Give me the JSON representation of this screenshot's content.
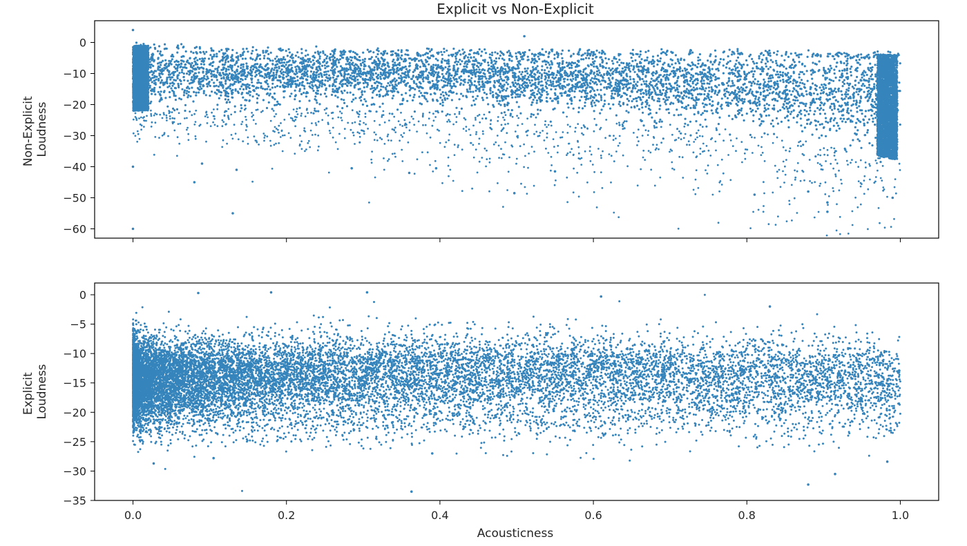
{
  "figure": {
    "title": "Explicit vs Non-Explicit",
    "xlabel": "Acousticness"
  },
  "colors": {
    "marker": "#1f77b4",
    "axes": "#000000",
    "text": "#262626",
    "background": "#ffffff"
  },
  "chart_data": [
    {
      "type": "scatter",
      "title": "Explicit vs Non-Explicit",
      "xlabel": "",
      "ylabel": "Non-Explicit\nLoudness",
      "ylabel_lines": [
        "Non-Explicit",
        "Loudness"
      ],
      "xlim": [
        -0.05,
        1.05
      ],
      "ylim": [
        -63,
        7
      ],
      "xticks": [
        0.0,
        0.2,
        0.4,
        0.6,
        0.8,
        1.0
      ],
      "xtick_labels_visible": false,
      "yticks": [
        0,
        -10,
        -20,
        -30,
        -40,
        -50,
        -60
      ],
      "ytick_labels": [
        "0",
        "−10",
        "−20",
        "−30",
        "−40",
        "−50",
        "−60"
      ],
      "grid": false,
      "series": [
        {
          "marker": "dot",
          "density": "very dense (tens of thousands of points)",
          "trend": [
            {
              "x": 0.0,
              "y_center": -10,
              "y_band": [
                -22,
                -1
              ]
            },
            {
              "x": 0.2,
              "y_center": -10,
              "y_band": [
                -21,
                -2
              ]
            },
            {
              "x": 0.4,
              "y_center": -11,
              "y_band": [
                -22,
                -3
              ]
            },
            {
              "x": 0.6,
              "y_center": -12,
              "y_band": [
                -24,
                -3
              ]
            },
            {
              "x": 0.8,
              "y_center": -14,
              "y_band": [
                -28,
                -3
              ]
            },
            {
              "x": 1.0,
              "y_center": -17,
              "y_band": [
                -38,
                -4
              ]
            }
          ],
          "outliers": [
            {
              "x": 0.0,
              "y": -60
            },
            {
              "x": 0.0,
              "y": 4
            },
            {
              "x": 0.13,
              "y": -55
            },
            {
              "x": 0.08,
              "y": -45
            },
            {
              "x": 0.0,
              "y": -40
            },
            {
              "x": 0.497,
              "y": -48.5
            },
            {
              "x": 0.905,
              "y": -54.5
            },
            {
              "x": 0.905,
              "y": -51.5
            },
            {
              "x": 0.99,
              "y": -50
            },
            {
              "x": 0.81,
              "y": -49
            },
            {
              "x": 0.88,
              "y": -48
            },
            {
              "x": 0.55,
              "y": -41.5
            },
            {
              "x": 0.36,
              "y": -42
            },
            {
              "x": 0.285,
              "y": -40.5
            },
            {
              "x": 0.395,
              "y": -40.5
            },
            {
              "x": 0.135,
              "y": -41
            },
            {
              "x": 0.51,
              "y": 2
            },
            {
              "x": 0.09,
              "y": -39
            }
          ]
        }
      ]
    },
    {
      "type": "scatter",
      "title": "",
      "xlabel": "Acousticness",
      "ylabel": "Explicit\nLoudness",
      "ylabel_lines": [
        "Explicit",
        "Loudness"
      ],
      "xlim": [
        -0.05,
        1.05
      ],
      "ylim": [
        -35,
        2
      ],
      "xticks": [
        0.0,
        0.2,
        0.4,
        0.6,
        0.8,
        1.0
      ],
      "xtick_labels": [
        "0.0",
        "0.2",
        "0.4",
        "0.6",
        "0.8",
        "1.0"
      ],
      "yticks": [
        0,
        -5,
        -10,
        -15,
        -20,
        -25,
        -30,
        -35
      ],
      "ytick_labels": [
        "0",
        "−5",
        "−10",
        "−15",
        "−20",
        "−25",
        "−30",
        "−35"
      ],
      "grid": false,
      "series": [
        {
          "marker": "dot",
          "density": "dense near x=0, sparse toward x=1",
          "clusters": [
            {
              "name_hidden": true,
              "x_range": [
                0.0,
                1.0
              ],
              "y_center": -7,
              "y_spread": 3.0
            },
            {
              "name_hidden": true,
              "x_range": [
                0.0,
                1.0
              ],
              "y_center": -19,
              "y_spread": 3.0
            }
          ],
          "outliers": [
            {
              "x": 0.363,
              "y": -33.5
            },
            {
              "x": 0.88,
              "y": -32.3
            },
            {
              "x": 0.915,
              "y": -30.5
            },
            {
              "x": 0.027,
              "y": -28.7
            },
            {
              "x": 0.983,
              "y": -28.4
            },
            {
              "x": 0.105,
              "y": -27.8
            },
            {
              "x": 0.39,
              "y": -27
            },
            {
              "x": 0.83,
              "y": -2
            },
            {
              "x": 0.61,
              "y": -0.3
            },
            {
              "x": 0.085,
              "y": 0.3
            },
            {
              "x": 0.18,
              "y": 0.4
            },
            {
              "x": 0.305,
              "y": 0.4
            }
          ]
        }
      ]
    }
  ]
}
